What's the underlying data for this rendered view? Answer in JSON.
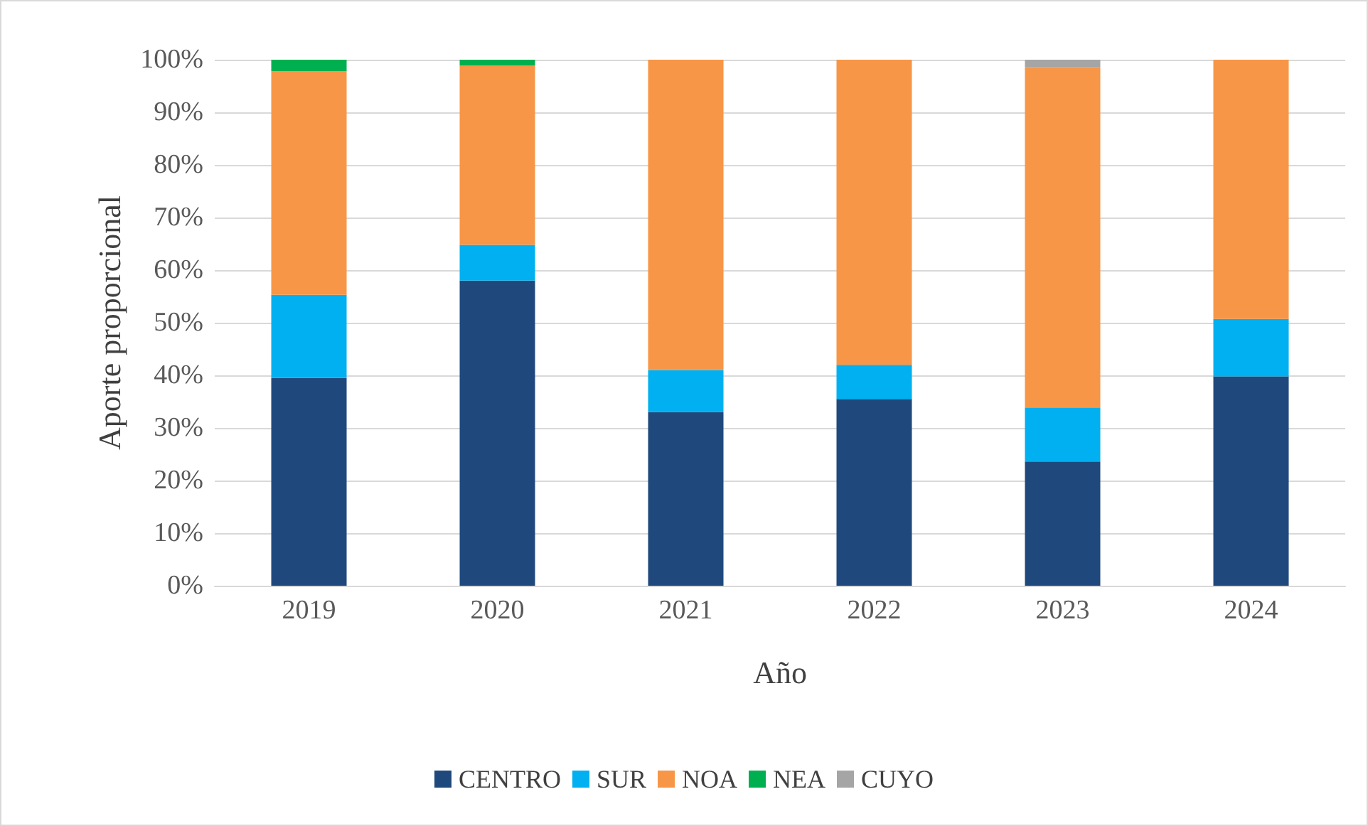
{
  "chart_data": {
    "type": "bar",
    "stacked": true,
    "xlabel": "Año",
    "ylabel": "Aporte proporcional",
    "categories": [
      "2019",
      "2020",
      "2021",
      "2022",
      "2023",
      "2024"
    ],
    "series": [
      {
        "name": "CENTRO",
        "color": "#1f497d",
        "values": [
          39.5,
          58,
          33,
          35.5,
          23.6,
          39.8
        ]
      },
      {
        "name": "SUR",
        "color": "#00b0f0",
        "values": [
          15.8,
          6.8,
          8,
          6.5,
          10.3,
          10.9
        ]
      },
      {
        "name": "NOA",
        "color": "#f79646",
        "values": [
          42.5,
          34.1,
          59,
          58,
          64.7,
          49.3
        ]
      },
      {
        "name": "NEA",
        "color": "#00b050",
        "values": [
          2.2,
          1.1,
          null,
          null,
          null,
          null
        ]
      },
      {
        "name": "CUYO",
        "color": "#a5a5a5",
        "values": [
          null,
          null,
          null,
          null,
          1.4,
          null
        ]
      }
    ],
    "ylim": [
      0,
      100
    ],
    "yticks": [
      {
        "value": 0,
        "label": "0%"
      },
      {
        "value": 10,
        "label": "10%"
      },
      {
        "value": 20,
        "label": "20%"
      },
      {
        "value": 30,
        "label": "30%"
      },
      {
        "value": 40,
        "label": "40%"
      },
      {
        "value": 50,
        "label": "50%"
      },
      {
        "value": 60,
        "label": "60%"
      },
      {
        "value": 70,
        "label": "70%"
      },
      {
        "value": 80,
        "label": "80%"
      },
      {
        "value": 90,
        "label": "90%"
      },
      {
        "value": 100,
        "label": "100%"
      }
    ],
    "grid": "y",
    "legend": "bottom"
  }
}
